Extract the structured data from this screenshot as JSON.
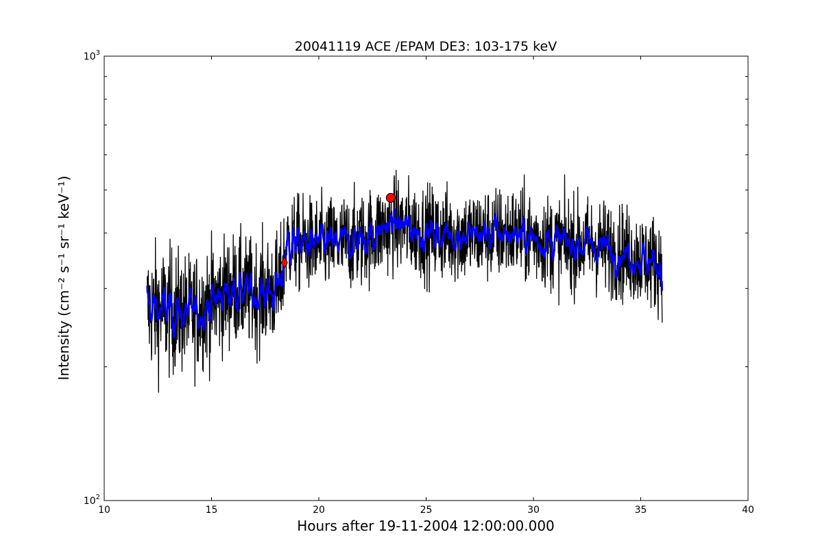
{
  "chart_data": {
    "type": "line",
    "title": "20041119 ACE /EPAM DE3: 103-175 keV",
    "xlabel": "Hours after 19-11-2004 12:00:00.000",
    "ylabel": "Intensity (cm⁻² s⁻¹ sr⁻¹ keV⁻¹)",
    "xlim": [
      10,
      40
    ],
    "ylim": [
      100,
      1000
    ],
    "yscale": "log",
    "x_ticks": [
      10,
      15,
      20,
      25,
      30,
      35,
      40
    ],
    "x_tick_labels": [
      "10",
      "15",
      "20",
      "25",
      "30",
      "35",
      "40"
    ],
    "y_tick_labels": [
      {
        "value": 100,
        "base": "10",
        "exp": "2"
      },
      {
        "value": 1000,
        "base": "10",
        "exp": "3"
      }
    ],
    "grid": false,
    "series": [
      {
        "color": "#000000",
        "style": "raw",
        "x_range": [
          12.0,
          36.0
        ],
        "envelope": [
          {
            "x": 12.0,
            "mean": 270,
            "spread": 0.16
          },
          {
            "x": 13.0,
            "mean": 268,
            "spread": 0.16
          },
          {
            "x": 14.0,
            "mean": 262,
            "spread": 0.15
          },
          {
            "x": 15.0,
            "mean": 278,
            "spread": 0.15
          },
          {
            "x": 16.0,
            "mean": 300,
            "spread": 0.14
          },
          {
            "x": 17.0,
            "mean": 290,
            "spread": 0.14
          },
          {
            "x": 18.2,
            "mean": 300,
            "spread": 0.14
          },
          {
            "x": 18.5,
            "mean": 380,
            "spread": 0.12
          },
          {
            "x": 20.0,
            "mean": 375,
            "spread": 0.12
          },
          {
            "x": 22.0,
            "mean": 385,
            "spread": 0.12
          },
          {
            "x": 23.5,
            "mean": 420,
            "spread": 0.12
          },
          {
            "x": 25.0,
            "mean": 400,
            "spread": 0.12
          },
          {
            "x": 27.0,
            "mean": 395,
            "spread": 0.12
          },
          {
            "x": 29.0,
            "mean": 400,
            "spread": 0.12
          },
          {
            "x": 31.0,
            "mean": 380,
            "spread": 0.12
          },
          {
            "x": 33.0,
            "mean": 375,
            "spread": 0.12
          },
          {
            "x": 35.0,
            "mean": 350,
            "spread": 0.12
          },
          {
            "x": 36.0,
            "mean": 340,
            "spread": 0.12
          }
        ]
      },
      {
        "color": "#0000ff",
        "style": "smoothed",
        "x_range": [
          12.0,
          36.0
        ]
      }
    ],
    "markers": [
      {
        "shape": "diamond",
        "color": "#ff0000",
        "x": 18.4,
        "y": 343
      },
      {
        "shape": "circle",
        "color": "#ff0000",
        "x": 23.35,
        "y": 480
      }
    ]
  }
}
